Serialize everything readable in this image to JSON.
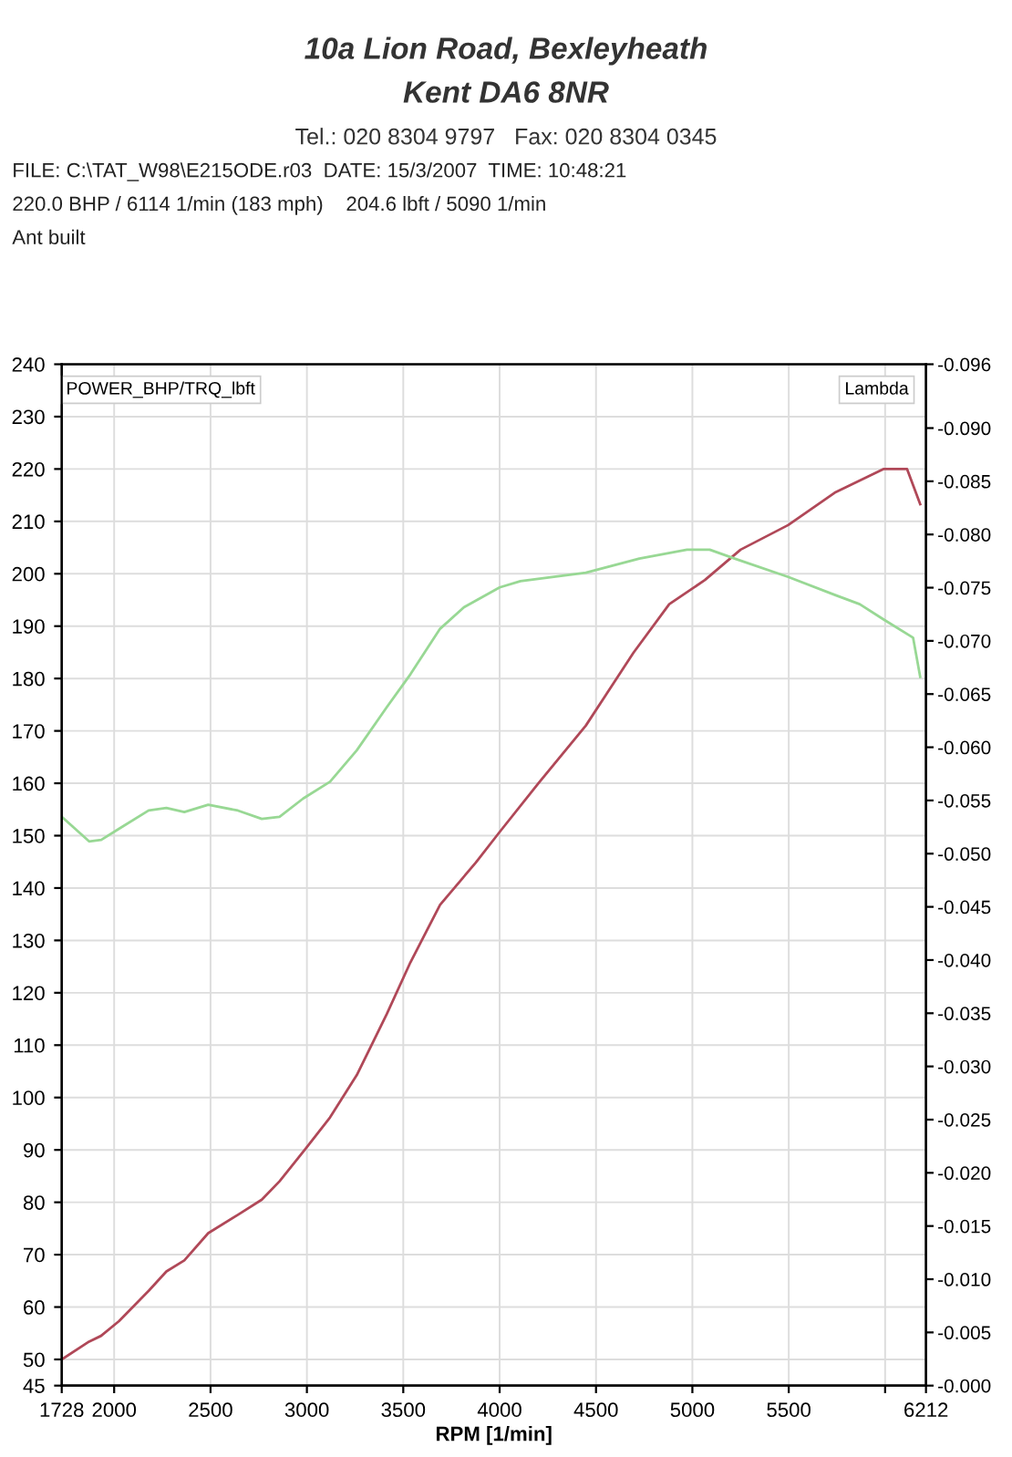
{
  "chart_data": {
    "type": "line",
    "annotations": [
      "10a Lion Road, Bexleyheath",
      "Kent DA6 8NR",
      "Tel.: 020 8304 9797   Fax: 020 8304 0345",
      "FILE: C:\\TAT_W98\\E215ODE.r03  DATE: 15/3/2007  TIME: 10:48:21",
      "220.0 BHP / 6114 1/min (183 mph)    204.6 lbft / 5090 1/min",
      "Ant built"
    ],
    "xlabel": "RPM [1/min]",
    "ylabel": "POWER_BHP/TRQ_lbft",
    "y2label": "Lambda",
    "series": [
      {
        "color": "#b04858",
        "x": [
          1728,
          1870,
          1932,
          2025,
          2179,
          2271,
          2364,
          2488,
          2642,
          2766,
          2858,
          2997,
          3120,
          3259,
          3414,
          3537,
          3691,
          3877,
          4000,
          4201,
          4447,
          4694,
          4880,
          5065,
          5250,
          5497,
          5744,
          5991,
          6114,
          6182
        ],
        "values": [
          50.0,
          53.4,
          54.5,
          57.3,
          63.1,
          66.8,
          68.9,
          74.1,
          77.6,
          80.5,
          84.0,
          90.4,
          96.2,
          104.3,
          115.9,
          125.8,
          136.8,
          144.9,
          150.7,
          160.0,
          171.0,
          184.9,
          194.2,
          198.8,
          204.6,
          209.3,
          215.6,
          220.0,
          220.0,
          213.3
        ]
      },
      {
        "color": "#98d894",
        "x": [
          1728,
          1870,
          1933,
          2025,
          2179,
          2271,
          2364,
          2488,
          2642,
          2766,
          2858,
          2981,
          3120,
          3259,
          3414,
          3537,
          3691,
          3815,
          4000,
          4108,
          4447,
          4725,
          4972,
          5090,
          5219,
          5497,
          5744,
          5868,
          5991,
          6145,
          6182
        ],
        "values": [
          153.6,
          148.9,
          149.2,
          151.3,
          154.8,
          155.3,
          154.5,
          155.9,
          154.8,
          153.2,
          153.6,
          157.1,
          160.3,
          166.3,
          174.5,
          180.8,
          189.5,
          193.6,
          197.4,
          198.6,
          200.2,
          202.9,
          204.6,
          204.6,
          202.9,
          199.4,
          195.9,
          194.2,
          191.3,
          187.8,
          180.3
        ]
      }
    ],
    "xlim": [
      1728,
      6212
    ],
    "xticks": [
      1728,
      2000,
      2500,
      3000,
      3500,
      4000,
      4500,
      5000,
      5500,
      {
        "value": 6000,
        "label": null
      },
      6212
    ],
    "ylim": [
      45,
      240
    ],
    "yticks": [
      45,
      50,
      60,
      70,
      80,
      90,
      100,
      110,
      120,
      130,
      140,
      150,
      160,
      170,
      180,
      190,
      200,
      210,
      220,
      230,
      240
    ],
    "y2lim": [
      0,
      -0.096
    ],
    "y2ticks": [
      {
        "value": 0,
        "label": "-0.000"
      },
      -0.005,
      {
        "value": -0.01,
        "label": "-0.010"
      },
      -0.015,
      {
        "value": -0.02,
        "label": "-0.020"
      },
      -0.025,
      {
        "value": -0.03,
        "label": "-0.030"
      },
      -0.035,
      {
        "value": -0.04,
        "label": "-0.040"
      },
      -0.045,
      {
        "value": -0.05,
        "label": "-0.050"
      },
      -0.055,
      {
        "value": -0.06,
        "label": "-0.060"
      },
      -0.065,
      {
        "value": -0.07,
        "label": "-0.070"
      },
      -0.075,
      {
        "value": -0.08,
        "label": "-0.080"
      },
      -0.085,
      {
        "value": -0.09,
        "label": "-0.090"
      },
      -0.096
    ],
    "grid": true
  }
}
